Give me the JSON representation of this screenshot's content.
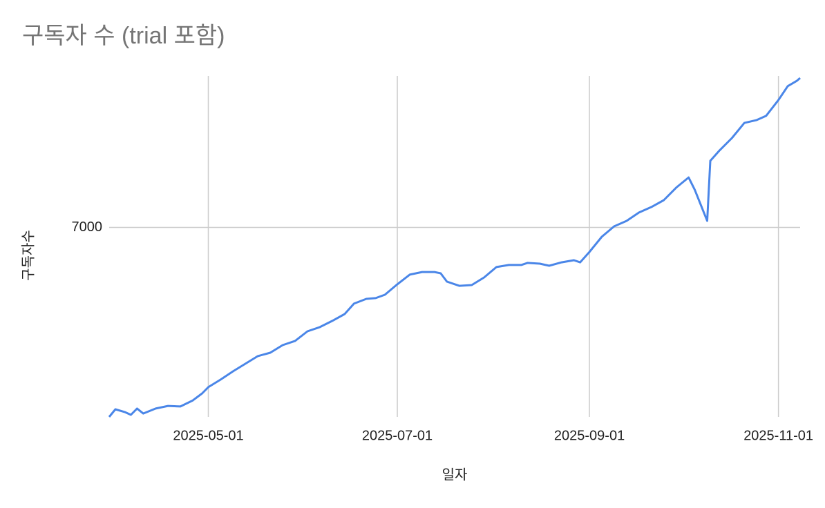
{
  "chart_data": {
    "type": "line",
    "title": "구독자 수 (trial 포함)",
    "x_label": "일자",
    "y_label": "구독자수",
    "x": [
      "2025-03-30",
      "2025-04-01",
      "2025-04-04",
      "2025-04-06",
      "2025-04-08",
      "2025-04-10",
      "2025-04-14",
      "2025-04-18",
      "2025-04-22",
      "2025-04-26",
      "2025-04-29",
      "2025-05-01",
      "2025-05-05",
      "2025-05-09",
      "2025-05-13",
      "2025-05-17",
      "2025-05-21",
      "2025-05-25",
      "2025-05-29",
      "2025-06-02",
      "2025-06-06",
      "2025-06-10",
      "2025-06-14",
      "2025-06-17",
      "2025-06-21",
      "2025-06-24",
      "2025-06-27",
      "2025-07-01",
      "2025-07-05",
      "2025-07-09",
      "2025-07-13",
      "2025-07-15",
      "2025-07-17",
      "2025-07-21",
      "2025-07-25",
      "2025-07-29",
      "2025-08-02",
      "2025-08-06",
      "2025-08-10",
      "2025-08-12",
      "2025-08-16",
      "2025-08-19",
      "2025-08-23",
      "2025-08-27",
      "2025-08-29",
      "2025-09-01",
      "2025-09-05",
      "2025-09-09",
      "2025-09-13",
      "2025-09-17",
      "2025-09-21",
      "2025-09-25",
      "2025-09-29",
      "2025-10-03",
      "2025-10-05",
      "2025-10-09",
      "2025-10-10",
      "2025-10-13",
      "2025-10-17",
      "2025-10-21",
      "2025-10-25",
      "2025-10-28",
      "2025-11-01",
      "2025-11-04",
      "2025-11-07",
      "2025-11-08"
    ],
    "series": [
      {
        "name": "구독자수",
        "color": "#4a86e8",
        "values": [
          6000,
          6040,
          6026,
          6011,
          6044,
          6018,
          6044,
          6058,
          6055,
          6087,
          6124,
          6157,
          6197,
          6241,
          6281,
          6321,
          6339,
          6379,
          6401,
          6452,
          6474,
          6507,
          6543,
          6598,
          6623,
          6627,
          6645,
          6700,
          6751,
          6765,
          6765,
          6758,
          6714,
          6692,
          6696,
          6736,
          6791,
          6802,
          6802,
          6813,
          6809,
          6798,
          6816,
          6827,
          6816,
          6871,
          6951,
          7006,
          7035,
          7079,
          7108,
          7144,
          7210,
          7264,
          7199,
          7035,
          7352,
          7407,
          7472,
          7552,
          7567,
          7589,
          7673,
          7746,
          7775,
          7789
        ]
      }
    ],
    "xlim": [
      "2025-03-30",
      "2025-11-08"
    ],
    "xticks": [
      "2025-05-01",
      "2025-07-01",
      "2025-09-01",
      "2025-11-01"
    ],
    "ylim": [
      6000,
      7800
    ],
    "yticks": [
      7000
    ],
    "grid": true
  }
}
